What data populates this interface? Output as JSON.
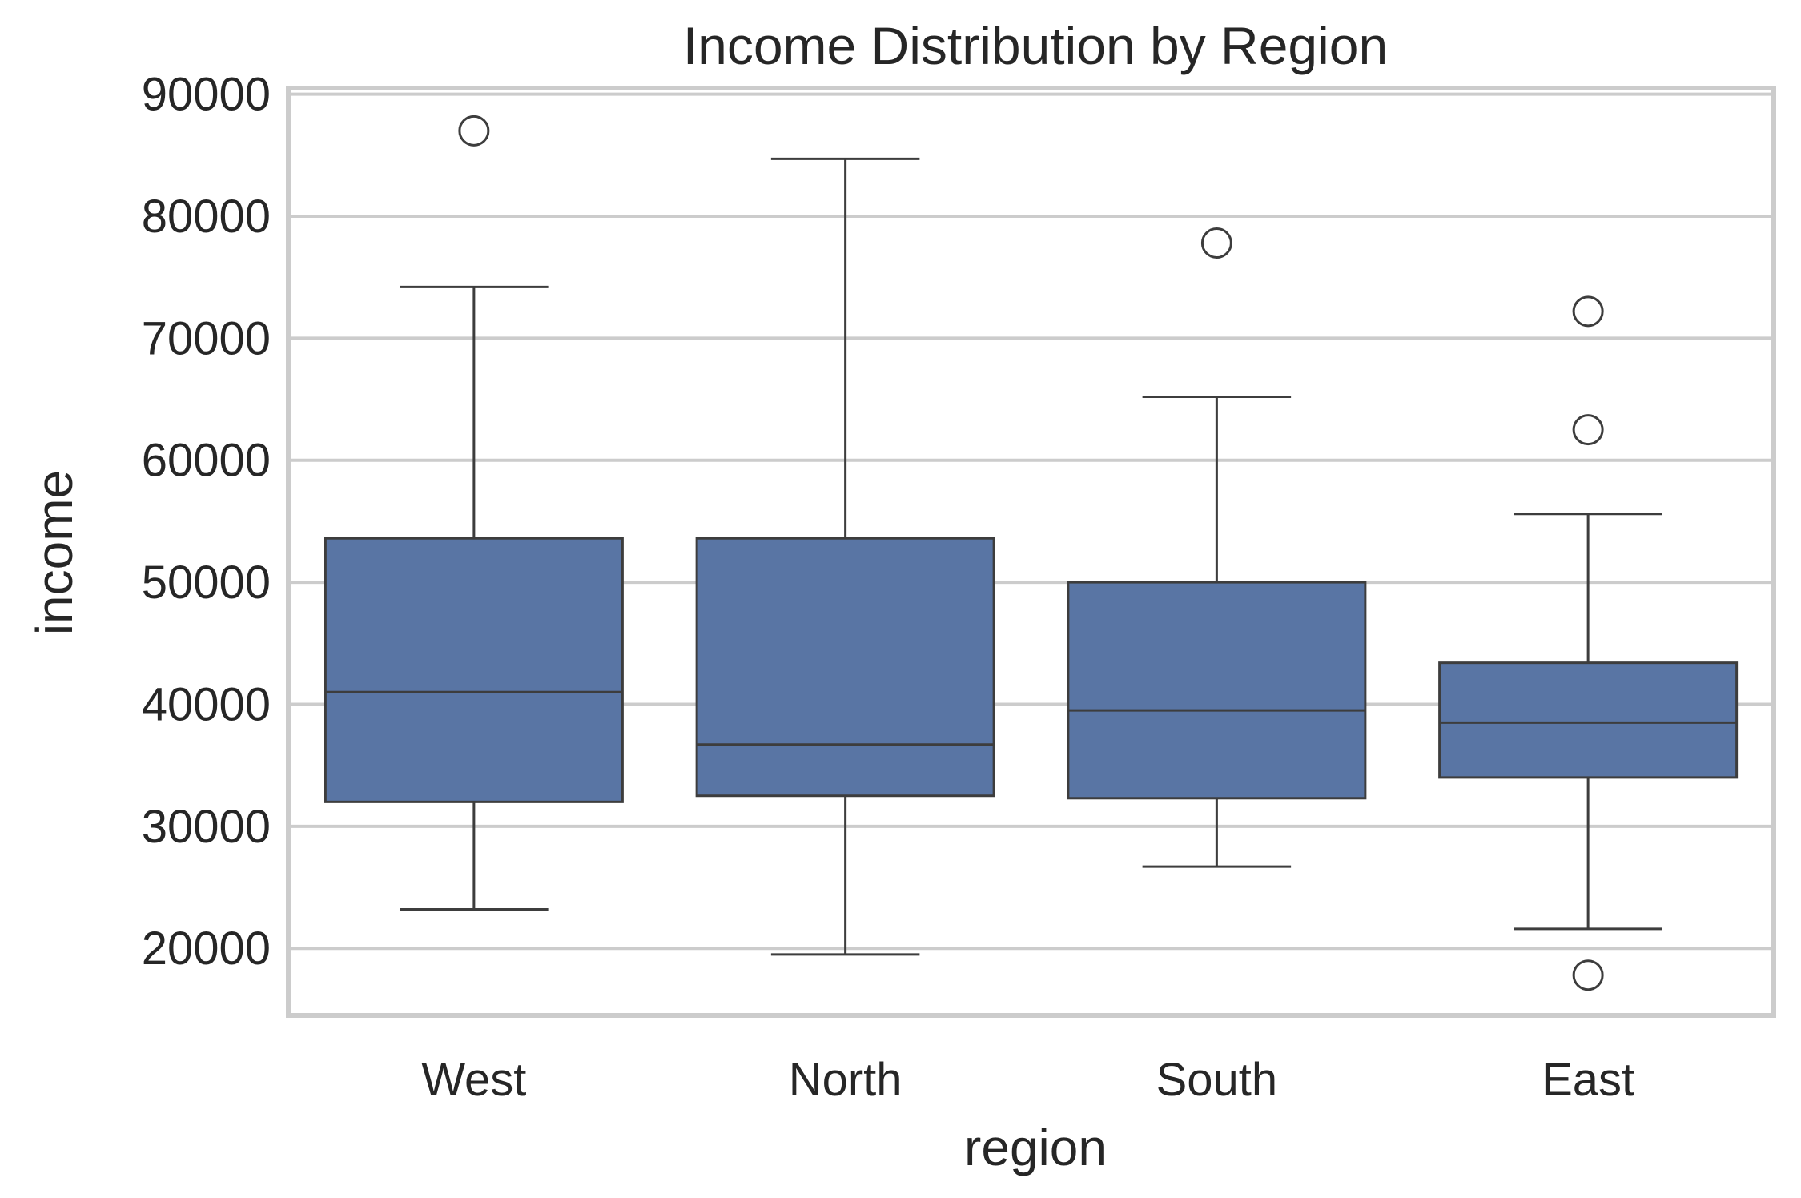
{
  "chart_data": {
    "type": "box",
    "title": "Income Distribution by Region",
    "xlabel": "region",
    "ylabel": "income",
    "categories": [
      "West",
      "North",
      "South",
      "East"
    ],
    "ylim": [
      14500,
      90500
    ],
    "yticks": [
      20000,
      30000,
      40000,
      50000,
      60000,
      70000,
      80000,
      90000
    ],
    "ytick_labels": [
      "20000",
      "30000",
      "40000",
      "50000",
      "60000",
      "70000",
      "80000",
      "90000"
    ],
    "grid": "horizontal",
    "box_color": "#5975a4",
    "line_color": "#3d3d3d",
    "grid_color": "#cccccc",
    "boxes": [
      {
        "category": "West",
        "whisker_low": 23200,
        "q1": 32000,
        "median": 41000,
        "q3": 53600,
        "whisker_high": 74200,
        "outliers": [
          87000
        ]
      },
      {
        "category": "North",
        "whisker_low": 19500,
        "q1": 32500,
        "median": 36700,
        "q3": 53600,
        "whisker_high": 84700,
        "outliers": []
      },
      {
        "category": "South",
        "whisker_low": 26700,
        "q1": 32300,
        "median": 39500,
        "q3": 50000,
        "whisker_high": 65200,
        "outliers": [
          77800
        ]
      },
      {
        "category": "East",
        "whisker_low": 21600,
        "q1": 34000,
        "median": 38500,
        "q3": 43400,
        "whisker_high": 55600,
        "outliers": [
          72200,
          62500,
          17800
        ]
      }
    ]
  }
}
